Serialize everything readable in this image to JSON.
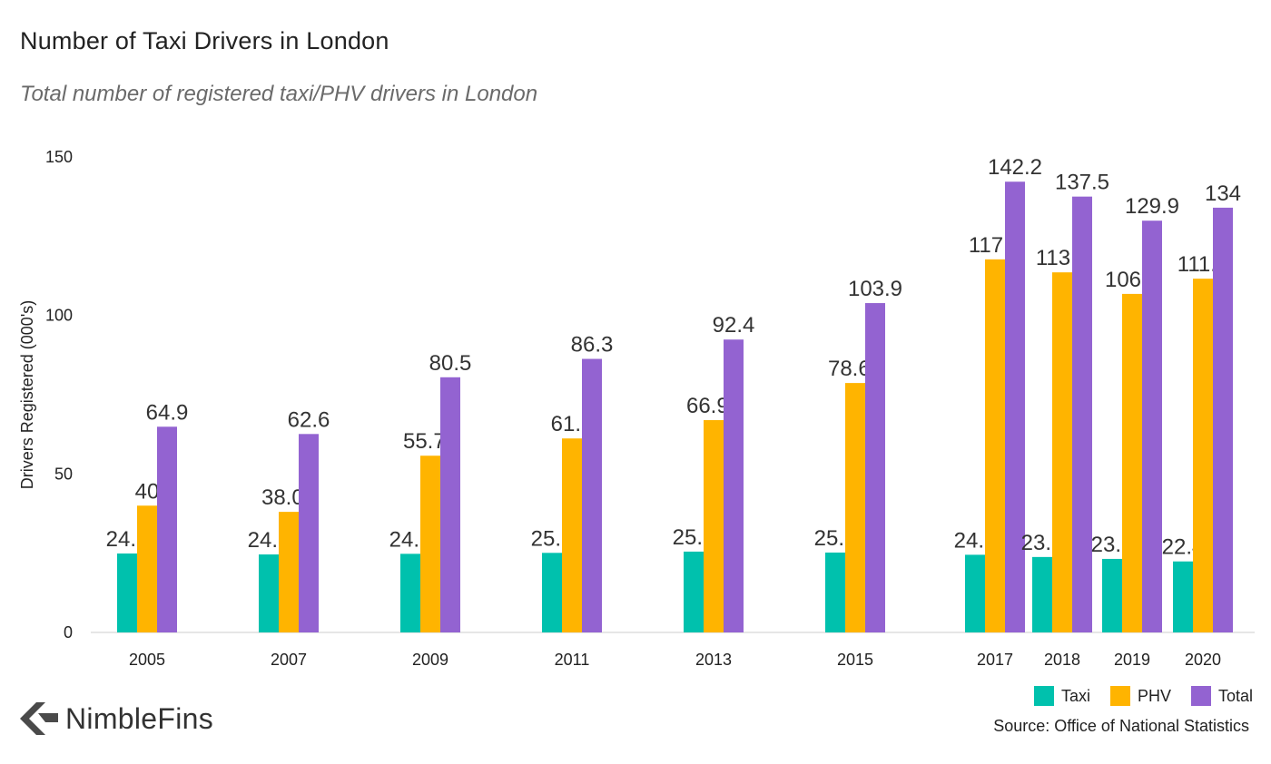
{
  "title": "Number of Taxi Drivers in London",
  "subtitle": "Total number of registered taxi/PHV drivers in London",
  "legend": [
    {
      "label": "Taxi",
      "color": "#00c1ad"
    },
    {
      "label": "PHV",
      "color": "#ffb400"
    },
    {
      "label": "Total",
      "color": "#9363d1"
    }
  ],
  "source": "Source: Office of National Statistics",
  "logo": {
    "text": "NimbleFins",
    "icon": "left-chevron-logo-icon"
  },
  "chart_data": {
    "type": "bar",
    "title": "Number of Taxi Drivers in London",
    "subtitle": "Total number of registered taxi/PHV drivers in London",
    "xlabel": "",
    "ylabel": "Drivers Registered (000's)",
    "ylim": [
      0,
      150
    ],
    "yticks": [
      0,
      50,
      100,
      150
    ],
    "grid": false,
    "legend_position": "bottom-right",
    "categories": [
      "2005",
      "2007",
      "2009",
      "2011",
      "2013",
      "2015",
      "2017",
      "2018",
      "2019",
      "2020"
    ],
    "series": [
      {
        "name": "Taxi",
        "color": "#00c1ad",
        "values": [
          24.9,
          24.6,
          24.8,
          25.1,
          25.5,
          25.2,
          24.5,
          23.8,
          23.2,
          22.4
        ],
        "labels": [
          "24.9",
          "24.6",
          "24.8",
          "25.1",
          "25.5",
          "25.2",
          "24.5",
          "23.8",
          "23.2",
          "22.4"
        ]
      },
      {
        "name": "PHV",
        "color": "#ffb400",
        "values": [
          40,
          38.04,
          55.75,
          61.2,
          66.98,
          78.69,
          117.7,
          113.6,
          106.8,
          111.6
        ],
        "labels": [
          "40",
          "38.04",
          "55.75",
          "61.2",
          "66.98",
          "78.69",
          "117.7",
          "113.6",
          "106.8",
          "111.6"
        ]
      },
      {
        "name": "Total",
        "color": "#9363d1",
        "values": [
          64.9,
          62.6,
          80.5,
          86.3,
          92.4,
          103.9,
          142.2,
          137.5,
          129.9,
          134
        ],
        "labels": [
          "64.9",
          "62.6",
          "80.5",
          "86.3",
          "92.4",
          "103.9",
          "142.2",
          "137.5",
          "129.9",
          "134"
        ]
      }
    ]
  }
}
